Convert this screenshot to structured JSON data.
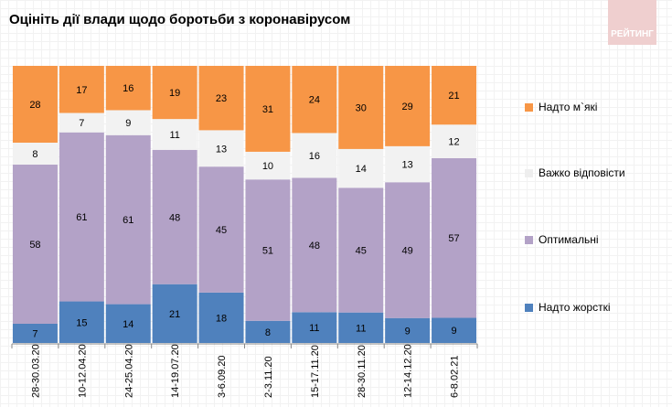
{
  "chart_data": {
    "type": "stacked-bar",
    "title": "Оцініть дії влади щодо боротьби з коронавірусом",
    "categories": [
      "28-30.03.20",
      "10-12.04.20",
      "24-25.04.20",
      "14-19.07.20",
      "3-6.09.20",
      "2-3.11.20",
      "15-17.11.20",
      "28-30.11.20",
      "12-14.12.20",
      "6-8.02.21"
    ],
    "series": [
      {
        "name": "Надто жорсткі",
        "color": "#4f81bd",
        "values": [
          7,
          15,
          14,
          21,
          18,
          8,
          11,
          11,
          9,
          9
        ]
      },
      {
        "name": "Оптимальні",
        "color": "#b3a2c7",
        "values": [
          58,
          61,
          61,
          48,
          45,
          51,
          48,
          45,
          49,
          57
        ]
      },
      {
        "name": "Важко відповісти",
        "color": "#f2f2f2",
        "values": [
          8,
          7,
          9,
          11,
          13,
          10,
          16,
          14,
          13,
          12
        ]
      },
      {
        "name": "Надто м`які",
        "color": "#f79646",
        "values": [
          28,
          17,
          16,
          19,
          23,
          31,
          24,
          30,
          29,
          21
        ]
      }
    ],
    "ylim": [
      0,
      100
    ],
    "legend": "right"
  },
  "logo": "РЕЙТИНГ"
}
